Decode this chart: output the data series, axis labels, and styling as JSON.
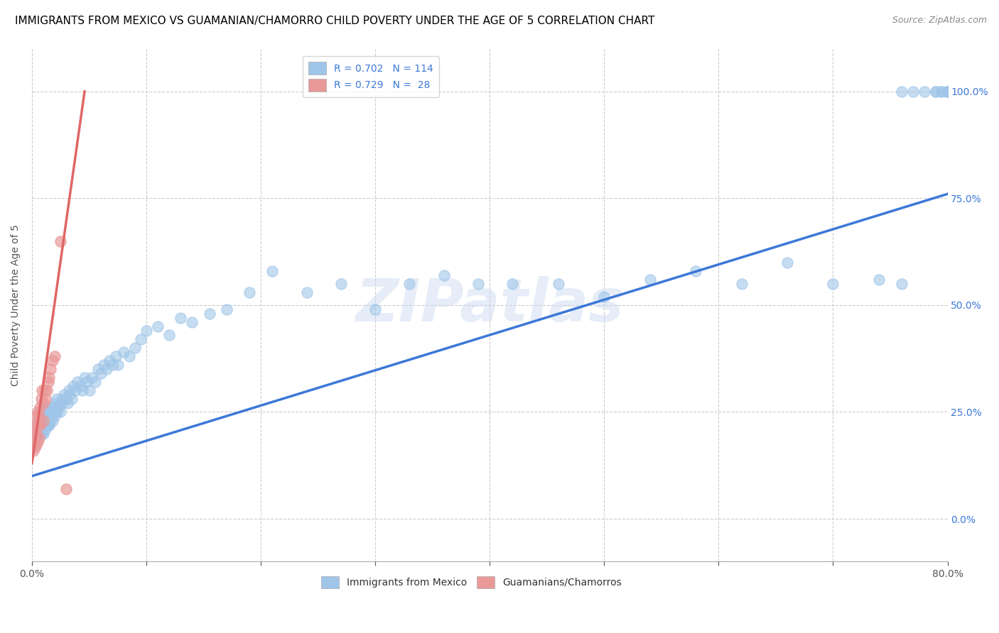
{
  "title": "IMMIGRANTS FROM MEXICO VS GUAMANIAN/CHAMORRO CHILD POVERTY UNDER THE AGE OF 5 CORRELATION CHART",
  "source": "Source: ZipAtlas.com",
  "ylabel": "Child Poverty Under the Age of 5",
  "watermark": "ZIPatlas",
  "legend_label_1": "R = 0.702   N = 114",
  "legend_label_2": "R = 0.729   N =  28",
  "legend_label_blue": "Immigrants from Mexico",
  "legend_label_pink": "Guamanians/Chamorros",
  "blue_color": "#9fc5e8",
  "pink_color": "#ea9999",
  "line_blue": "#3c78d8",
  "line_pink": "#e06666",
  "xlim": [
    0.0,
    0.8
  ],
  "ylim": [
    -0.1,
    1.1
  ],
  "x_tick_positions": [
    0.0,
    0.1,
    0.2,
    0.3,
    0.4,
    0.5,
    0.6,
    0.7,
    0.8
  ],
  "x_tick_labels": [
    "0.0%",
    "",
    "",
    "",
    "",
    "",
    "",
    "",
    "80.0%"
  ],
  "y_tick_positions": [
    0.0,
    0.25,
    0.5,
    0.75,
    1.0
  ],
  "y_tick_labels": [
    "0.0%",
    "25.0%",
    "50.0%",
    "75.0%",
    "100.0%"
  ],
  "blue_scatter_x": [
    0.002,
    0.003,
    0.004,
    0.004,
    0.005,
    0.005,
    0.005,
    0.006,
    0.006,
    0.007,
    0.007,
    0.007,
    0.008,
    0.008,
    0.009,
    0.009,
    0.009,
    0.01,
    0.01,
    0.01,
    0.011,
    0.011,
    0.012,
    0.012,
    0.012,
    0.013,
    0.013,
    0.014,
    0.014,
    0.015,
    0.015,
    0.016,
    0.016,
    0.017,
    0.018,
    0.018,
    0.019,
    0.02,
    0.02,
    0.021,
    0.022,
    0.022,
    0.023,
    0.024,
    0.025,
    0.026,
    0.027,
    0.028,
    0.03,
    0.031,
    0.032,
    0.033,
    0.035,
    0.036,
    0.038,
    0.04,
    0.042,
    0.044,
    0.046,
    0.048,
    0.05,
    0.052,
    0.055,
    0.058,
    0.06,
    0.063,
    0.065,
    0.068,
    0.07,
    0.073,
    0.075,
    0.08,
    0.085,
    0.09,
    0.095,
    0.1,
    0.11,
    0.12,
    0.13,
    0.14,
    0.155,
    0.17,
    0.19,
    0.21,
    0.24,
    0.27,
    0.3,
    0.33,
    0.36,
    0.39,
    0.42,
    0.46,
    0.5,
    0.54,
    0.58,
    0.62,
    0.66,
    0.7,
    0.74,
    0.76,
    0.76,
    0.77,
    0.78,
    0.79,
    0.79,
    0.795,
    0.795,
    0.8,
    0.8,
    0.8,
    0.8,
    0.8,
    0.8,
    0.8
  ],
  "blue_scatter_y": [
    0.17,
    0.18,
    0.2,
    0.21,
    0.2,
    0.22,
    0.23,
    0.21,
    0.22,
    0.2,
    0.21,
    0.23,
    0.22,
    0.24,
    0.2,
    0.22,
    0.25,
    0.2,
    0.22,
    0.24,
    0.22,
    0.25,
    0.21,
    0.23,
    0.26,
    0.22,
    0.24,
    0.22,
    0.25,
    0.22,
    0.25,
    0.23,
    0.26,
    0.24,
    0.23,
    0.26,
    0.25,
    0.24,
    0.27,
    0.25,
    0.25,
    0.28,
    0.26,
    0.27,
    0.25,
    0.28,
    0.27,
    0.29,
    0.28,
    0.27,
    0.3,
    0.29,
    0.28,
    0.31,
    0.3,
    0.32,
    0.31,
    0.3,
    0.33,
    0.32,
    0.3,
    0.33,
    0.32,
    0.35,
    0.34,
    0.36,
    0.35,
    0.37,
    0.36,
    0.38,
    0.36,
    0.39,
    0.38,
    0.4,
    0.42,
    0.44,
    0.45,
    0.43,
    0.47,
    0.46,
    0.48,
    0.49,
    0.53,
    0.58,
    0.53,
    0.55,
    0.49,
    0.55,
    0.57,
    0.55,
    0.55,
    0.55,
    0.52,
    0.56,
    0.58,
    0.55,
    0.6,
    0.55,
    0.56,
    0.55,
    1.0,
    1.0,
    1.0,
    1.0,
    1.0,
    1.0,
    1.0,
    1.0,
    1.0,
    1.0,
    1.0,
    1.0,
    1.0,
    1.0
  ],
  "pink_scatter_x": [
    0.001,
    0.002,
    0.002,
    0.003,
    0.003,
    0.004,
    0.004,
    0.005,
    0.005,
    0.005,
    0.006,
    0.006,
    0.007,
    0.007,
    0.008,
    0.009,
    0.01,
    0.01,
    0.011,
    0.012,
    0.013,
    0.014,
    0.015,
    0.016,
    0.018,
    0.02,
    0.025,
    0.03
  ],
  "pink_scatter_y": [
    0.16,
    0.18,
    0.2,
    0.17,
    0.22,
    0.2,
    0.24,
    0.18,
    0.22,
    0.25,
    0.19,
    0.24,
    0.22,
    0.26,
    0.28,
    0.3,
    0.23,
    0.27,
    0.3,
    0.28,
    0.3,
    0.32,
    0.33,
    0.35,
    0.37,
    0.38,
    0.65,
    0.07
  ],
  "blue_line_x": [
    0.0,
    0.8
  ],
  "blue_line_y": [
    0.1,
    0.76
  ],
  "pink_line_x": [
    0.0,
    0.046
  ],
  "pink_line_y": [
    0.13,
    1.0
  ],
  "title_fontsize": 11,
  "axis_label_fontsize": 10,
  "tick_fontsize": 10,
  "source_fontsize": 9,
  "legend_fontsize": 10
}
